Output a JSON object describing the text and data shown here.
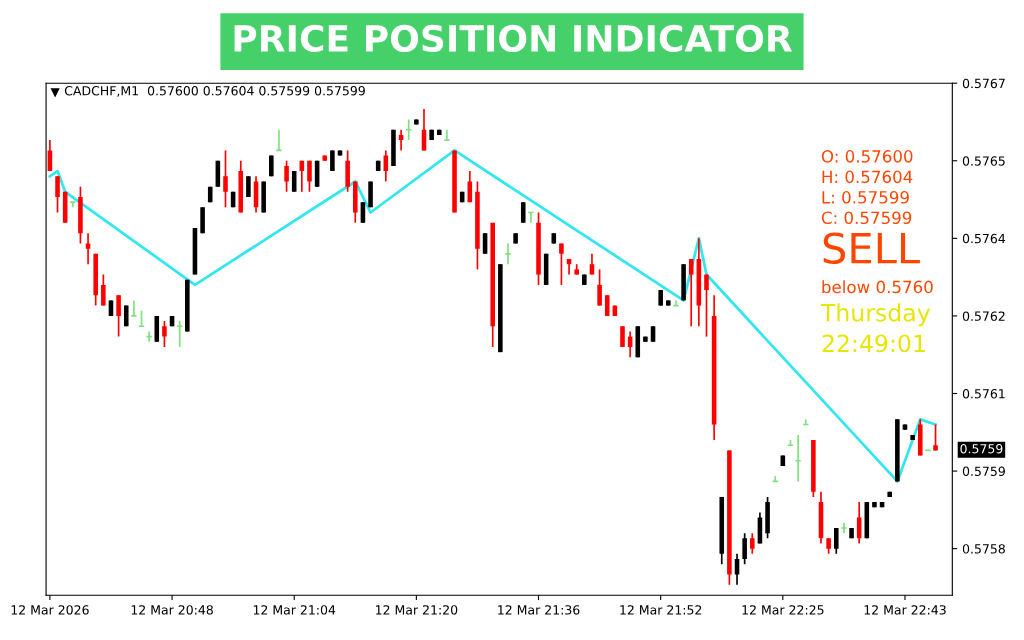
{
  "chart_data": {
    "type": "candlestick",
    "title": "PRICE POSITION INDICATOR",
    "categories": [
      "12 Mar 2026",
      null,
      null,
      null,
      null,
      null,
      null,
      null,
      null,
      null,
      null,
      null,
      null,
      null,
      null,
      null,
      "12 Mar 20:48",
      null,
      null,
      null,
      null,
      null,
      null,
      null,
      null,
      null,
      null,
      null,
      null,
      null,
      null,
      null,
      "12 Mar 21:04",
      null,
      null,
      null,
      null,
      null,
      null,
      null,
      null,
      null,
      null,
      null,
      null,
      null,
      null,
      null,
      "12 Mar 21:20",
      null,
      null,
      null,
      null,
      null,
      null,
      null,
      null,
      null,
      null,
      null,
      null,
      null,
      null,
      null,
      "12 Mar 21:36",
      null,
      null,
      null,
      null,
      null,
      null,
      null,
      null,
      null,
      null,
      null,
      null,
      null,
      null,
      null,
      "12 Mar 21:52",
      null,
      null,
      null,
      null,
      null,
      null,
      null,
      null,
      null,
      null,
      null,
      null,
      null,
      null,
      null,
      "12 Mar 22:25",
      null,
      null,
      null,
      null,
      null,
      null,
      null,
      null,
      null,
      null,
      null,
      null,
      null,
      null,
      null,
      "12 Mar 22:43",
      null,
      null,
      null,
      null
    ],
    "ohlc": [
      [
        0.57657,
        0.57659,
        0.57653,
        0.57653
      ],
      [
        0.57652,
        0.57652,
        0.57645,
        0.57648
      ],
      [
        0.57649,
        0.57649,
        0.57643,
        0.57643
      ],
      [
        0.57647,
        0.57647,
        0.57646,
        0.57647
      ],
      [
        0.57648,
        0.5765,
        0.57639,
        0.57641
      ],
      [
        0.57639,
        0.57641,
        0.57635,
        0.57638
      ],
      [
        0.57637,
        0.57637,
        0.57627,
        0.57629
      ],
      [
        0.57631,
        0.57633,
        0.57627,
        0.57627
      ],
      [
        0.57625,
        0.57628,
        0.57625,
        0.57628
      ],
      [
        0.57629,
        0.57629,
        0.57621,
        0.57625
      ],
      [
        0.57623,
        0.57627,
        0.57623,
        0.57627
      ],
      [
        0.57625,
        0.57628,
        0.57625,
        0.57625
      ],
      [
        0.57623,
        0.57626,
        0.57623,
        0.57623
      ],
      [
        0.57621,
        0.57622,
        0.5762,
        0.57621
      ],
      [
        0.5762,
        0.57625,
        0.5762,
        0.57625
      ],
      [
        0.57623,
        0.57624,
        0.57619,
        0.57621
      ],
      [
        0.57623,
        0.57625,
        0.57623,
        0.57625
      ],
      [
        0.57623,
        0.57624,
        0.57619,
        0.57623
      ],
      [
        0.57622,
        0.57632,
        0.57622,
        0.57632
      ],
      [
        0.57633,
        0.57642,
        0.57633,
        0.57642
      ],
      [
        0.57641,
        0.57646,
        0.57641,
        0.57646
      ],
      [
        0.57647,
        0.5765,
        0.57647,
        0.5765
      ],
      [
        0.5765,
        0.57655,
        0.5765,
        0.57655
      ],
      [
        0.57652,
        0.57657,
        0.57646,
        0.57649
      ],
      [
        0.57646,
        0.57649,
        0.57646,
        0.57649
      ],
      [
        0.57653,
        0.57655,
        0.57645,
        0.57645
      ],
      [
        0.57648,
        0.57652,
        0.57648,
        0.57652
      ],
      [
        0.57651,
        0.57652,
        0.57645,
        0.57646
      ],
      [
        0.57645,
        0.57651,
        0.57645,
        0.57651
      ],
      [
        0.57652,
        0.57656,
        0.57652,
        0.57656
      ],
      [
        0.57657,
        0.57661,
        0.57657,
        0.57657
      ],
      [
        0.57654,
        0.57655,
        0.57649,
        0.57651
      ],
      [
        0.57649,
        0.57653,
        0.57649,
        0.57653
      ],
      [
        0.57655,
        0.57655,
        0.57649,
        0.57653
      ],
      [
        0.57655,
        0.57655,
        0.57649,
        0.57651
      ],
      [
        0.5765,
        0.57655,
        0.5765,
        0.57655
      ],
      [
        0.57656,
        0.57656,
        0.57655,
        0.57655
      ],
      [
        0.57653,
        0.57657,
        0.57653,
        0.57657
      ],
      [
        0.57656,
        0.57657,
        0.57656,
        0.57657
      ],
      [
        0.57655,
        0.57657,
        0.57649,
        0.5765
      ],
      [
        0.57651,
        0.57651,
        0.57643,
        0.57645
      ],
      [
        0.57643,
        0.57647,
        0.57643,
        0.57647
      ],
      [
        0.57646,
        0.57651,
        0.57646,
        0.57651
      ],
      [
        0.57653,
        0.57655,
        0.57653,
        0.57655
      ],
      [
        0.57656,
        0.57657,
        0.57651,
        0.57653
      ],
      [
        0.57654,
        0.57661,
        0.57654,
        0.57661
      ],
      [
        0.5766,
        0.57661,
        0.57657,
        0.57659
      ],
      [
        0.57661,
        0.57663,
        0.57659,
        0.57661
      ],
      [
        0.57662,
        0.57663,
        0.57662,
        0.57663
      ],
      [
        0.57661,
        0.57665,
        0.57657,
        0.57657
      ],
      [
        0.57659,
        0.57661,
        0.57659,
        0.57661
      ],
      [
        0.5766,
        0.57661,
        0.5766,
        0.57661
      ],
      [
        0.57659,
        0.57661,
        0.57659,
        0.57659
      ],
      [
        0.57657,
        0.57657,
        0.57645,
        0.57645
      ],
      [
        0.57647,
        0.57649,
        0.57647,
        0.57649
      ],
      [
        0.57651,
        0.57653,
        0.57647,
        0.57647
      ],
      [
        0.57649,
        0.57651,
        0.57634,
        0.57638
      ],
      [
        0.57637,
        0.57641,
        0.57637,
        0.57641
      ],
      [
        0.57643,
        0.57643,
        0.57619,
        0.57623
      ],
      [
        0.57618,
        0.57635,
        0.57618,
        0.57635
      ],
      [
        0.57637,
        0.57639,
        0.57635,
        0.57637
      ],
      [
        0.57639,
        0.57641,
        0.57639,
        0.57641
      ],
      [
        0.57643,
        0.57647,
        0.57643,
        0.57647
      ],
      [
        0.57645,
        0.57645,
        0.57643,
        0.57645
      ],
      [
        0.57643,
        0.57645,
        0.57631,
        0.57633
      ],
      [
        0.57631,
        0.57637,
        0.57631,
        0.57637
      ],
      [
        0.57639,
        0.57641,
        0.57639,
        0.57641
      ],
      [
        0.57639,
        0.57639,
        0.57631,
        0.57637
      ],
      [
        0.57636,
        0.57636,
        0.57633,
        0.57635
      ],
      [
        0.57634,
        0.57635,
        0.57633,
        0.57633
      ],
      [
        0.57631,
        0.57633,
        0.57631,
        0.57633
      ],
      [
        0.57635,
        0.57637,
        0.57633,
        0.57633
      ],
      [
        0.57631,
        0.57634,
        0.57627,
        0.57627
      ],
      [
        0.57629,
        0.57629,
        0.57625,
        0.57625
      ],
      [
        0.57627,
        0.57627,
        0.57625,
        0.57625
      ],
      [
        0.57623,
        0.57623,
        0.57619,
        0.57619
      ],
      [
        0.57621,
        0.57622,
        0.57617,
        0.57619
      ],
      [
        0.57617,
        0.57623,
        0.57617,
        0.57623
      ],
      [
        0.5762,
        0.57621,
        0.5762,
        0.57621
      ],
      [
        0.5762,
        0.57623,
        0.5762,
        0.57623
      ],
      [
        0.57627,
        0.5763,
        0.57627,
        0.5763
      ],
      [
        0.57627,
        0.57628,
        0.57627,
        0.57628
      ],
      [
        0.57627,
        0.57628,
        0.57627,
        0.57627
      ],
      [
        0.57628,
        0.57635,
        0.57628,
        0.57635
      ],
      [
        0.57636,
        0.57636,
        0.57623,
        0.57633
      ],
      [
        0.57636,
        0.5764,
        0.57623,
        0.57627
      ],
      [
        0.57633,
        0.57633,
        0.57621,
        0.5763
      ],
      [
        0.57625,
        0.57629,
        0.57601,
        0.57604
      ],
      [
        0.57579,
        0.5759,
        0.57577,
        0.5759
      ],
      [
        0.57599,
        0.57599,
        0.57573,
        0.57575
      ],
      [
        0.57575,
        0.57579,
        0.57573,
        0.57578
      ],
      [
        0.57578,
        0.57583,
        0.57577,
        0.57582
      ],
      [
        0.57582,
        0.57583,
        0.57579,
        0.5758
      ],
      [
        0.57581,
        0.57587,
        0.57581,
        0.57586
      ],
      [
        0.57583,
        0.5759,
        0.57582,
        0.57589
      ],
      [
        0.57593,
        0.57594,
        0.57593,
        0.57593
      ],
      [
        0.57596,
        0.57598,
        0.57596,
        0.57598
      ],
      [
        0.576,
        0.57601,
        0.576,
        0.576
      ],
      [
        0.57597,
        0.57602,
        0.57593,
        0.57597
      ],
      [
        0.57604,
        0.57605,
        0.57604,
        0.57604
      ],
      [
        0.57601,
        0.57601,
        0.5759,
        0.57591
      ],
      [
        0.57589,
        0.57591,
        0.57581,
        0.57582
      ],
      [
        0.57582,
        0.57582,
        0.57579,
        0.5758
      ],
      [
        0.5758,
        0.57584,
        0.57579,
        0.57584
      ],
      [
        0.57584,
        0.57585,
        0.57583,
        0.57584
      ],
      [
        0.57582,
        0.57584,
        0.57582,
        0.57584
      ],
      [
        0.57586,
        0.57589,
        0.57581,
        0.57582
      ],
      [
        0.57582,
        0.57589,
        0.57582,
        0.57589
      ],
      [
        0.57588,
        0.57589,
        0.57588,
        0.57589
      ],
      [
        0.57588,
        0.57589,
        0.57588,
        0.57589
      ],
      [
        0.5759,
        0.57591,
        0.5759,
        0.57591
      ],
      [
        0.57593,
        0.57605,
        0.57593,
        0.57605
      ],
      [
        0.57603,
        0.57604,
        0.57603,
        0.57604
      ],
      [
        0.57601,
        0.57602,
        0.57601,
        0.57602
      ],
      [
        0.57604,
        0.57605,
        0.57598,
        0.57598
      ],
      [
        0.57599,
        0.57599,
        0.57599,
        0.57599
      ],
      [
        0.576,
        0.57604,
        0.57599,
        0.57599
      ]
    ],
    "colors": [
      "#ff0000",
      "#ff0000",
      "#ff0000",
      "#7ee07e",
      "#ff0000",
      "#ff0000",
      "#ff0000",
      "#ff0000",
      "#000000",
      "#ff0000",
      "#000000",
      "#7ee07e",
      "#7ee07e",
      "#7ee07e",
      "#000000",
      "#ff0000",
      "#000000",
      "#7ee07e",
      "#000000",
      "#000000",
      "#000000",
      "#000000",
      "#000000",
      "#ff0000",
      "#000000",
      "#ff0000",
      "#000000",
      "#ff0000",
      "#000000",
      "#000000",
      "#7ee07e",
      "#ff0000",
      "#000000",
      "#ff0000",
      "#ff0000",
      "#000000",
      "#ff0000",
      "#000000",
      "#000000",
      "#ff0000",
      "#ff0000",
      "#000000",
      "#000000",
      "#000000",
      "#ff0000",
      "#000000",
      "#ff0000",
      "#7ee07e",
      "#000000",
      "#ff0000",
      "#000000",
      "#000000",
      "#7ee07e",
      "#ff0000",
      "#000000",
      "#ff0000",
      "#ff0000",
      "#000000",
      "#ff0000",
      "#000000",
      "#7ee07e",
      "#000000",
      "#000000",
      "#7ee07e",
      "#ff0000",
      "#000000",
      "#000000",
      "#ff0000",
      "#ff0000",
      "#ff0000",
      "#000000",
      "#ff0000",
      "#ff0000",
      "#ff0000",
      "#ff0000",
      "#ff0000",
      "#ff0000",
      "#000000",
      "#000000",
      "#000000",
      "#000000",
      "#000000",
      "#7ee07e",
      "#000000",
      "#ff0000",
      "#ff0000",
      "#ff0000",
      "#ff0000",
      "#000000",
      "#ff0000",
      "#000000",
      "#000000",
      "#ff0000",
      "#000000",
      "#000000",
      "#7ee07e",
      "#000000",
      "#7ee07e",
      "#7ee07e",
      "#7ee07e",
      "#ff0000",
      "#ff0000",
      "#ff0000",
      "#000000",
      "#7ee07e",
      "#000000",
      "#ff0000",
      "#000000",
      "#000000",
      "#000000",
      "#000000",
      "#000000",
      "#000000",
      "#000000",
      "#ff0000",
      "#7ee07e",
      "#ff0000"
    ],
    "series": [
      {
        "type": "line",
        "color": "#33e6f0",
        "values": [
          0.57652,
          0.57653,
          0.57649,
          null,
          null,
          null,
          null,
          null,
          null,
          null,
          null,
          null,
          null,
          null,
          null,
          null,
          null,
          null,
          null,
          0.57631,
          null,
          null,
          null,
          null,
          null,
          null,
          null,
          null,
          null,
          null,
          null,
          null,
          null,
          null,
          null,
          null,
          null,
          null,
          null,
          null,
          0.57651,
          null,
          0.57645,
          null,
          null,
          null,
          null,
          null,
          null,
          null,
          null,
          null,
          null,
          0.57657,
          null,
          null,
          null,
          null,
          null,
          null,
          null,
          null,
          null,
          null,
          null,
          null,
          null,
          null,
          null,
          null,
          null,
          null,
          null,
          null,
          null,
          null,
          null,
          null,
          null,
          null,
          null,
          null,
          null,
          0.57628,
          null,
          0.5764,
          0.57633,
          null,
          null,
          null,
          null,
          null,
          null,
          null,
          null,
          null,
          null,
          null,
          null,
          null,
          null,
          null,
          null,
          null,
          null,
          null,
          null,
          null,
          null,
          null,
          null,
          0.57593,
          null,
          null,
          0.57605,
          null,
          0.57604
        ]
      }
    ],
    "ylim": [
      0.57571,
      0.5767
    ],
    "yticks": [
      0.5758,
      {
        "value": 0.57595,
        "label": "0.5759"
      },
      0.5761,
      {
        "value": 0.57625,
        "label": "0.5762"
      },
      0.5764,
      {
        "value": 0.57655,
        "label": "0.5765"
      },
      0.5767
    ],
    "annotations": [
      "CADCHF,M1  0.57600 0.57604 0.57599 0.57599",
      "O: 0.57600",
      "H: 0.57604",
      "L: 0.57599",
      "C: 0.57599",
      "SELL",
      "below 0.5760",
      "Thursday",
      "22:49:01",
      "0.5759"
    ],
    "grid": false,
    "legend": false
  }
}
